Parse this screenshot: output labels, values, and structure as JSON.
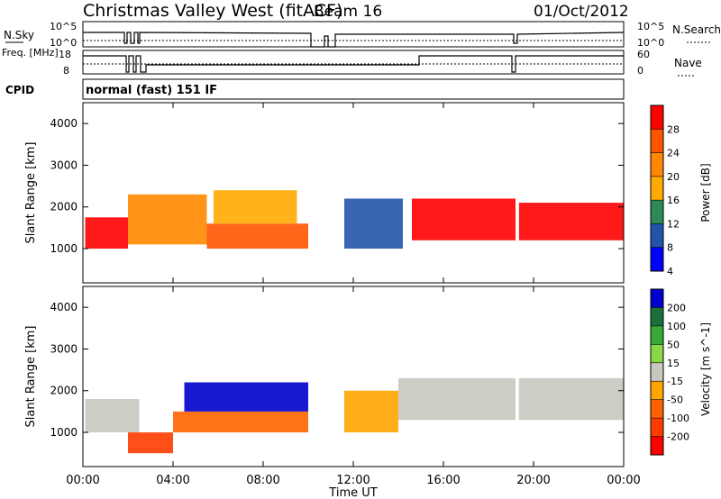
{
  "header": {
    "station": "Christmas Valley West (fitACF)",
    "beam": "Beam 16",
    "date": "01/Oct/2012"
  },
  "nsky_panel": {
    "left_label": "N.Sky",
    "right_label": "N.Search",
    "y_ticks": [
      "10^5",
      "10^0"
    ],
    "right_ticks": [
      "10^5",
      "10^0"
    ]
  },
  "freq_panel": {
    "left_label": "Freq. [MHz]",
    "left_ticks": [
      "18",
      "8"
    ],
    "right_label": "Nave",
    "right_ticks": [
      "60",
      "0"
    ]
  },
  "cpid": {
    "label": "CPID",
    "mode": "normal (fast) 151 IF"
  },
  "power_panel": {
    "ylabel": "Slant Range [km]",
    "y_ticks": [
      "4000",
      "3000",
      "2000",
      "1000"
    ],
    "colorbar_label": "Power [dB]",
    "colorbar_ticks": [
      "28",
      "24",
      "20",
      "16",
      "12",
      "8",
      "4"
    ],
    "colorbar_colors": [
      "#ff0000",
      "#ff5500",
      "#ff8800",
      "#ffaa00",
      "#2e8b57",
      "#2255aa",
      "#0000ff"
    ]
  },
  "velocity_panel": {
    "ylabel": "Slant Range [km]",
    "y_ticks": [
      "4000",
      "3000",
      "2000",
      "1000"
    ],
    "colorbar_label": "Velocity [m s^-1]",
    "colorbar_ticks": [
      "200",
      "100",
      "50",
      "15",
      "-15",
      "-50",
      "-100",
      "-200"
    ],
    "colorbar_colors": [
      "#0000cc",
      "#1c6e3a",
      "#38a838",
      "#88d848",
      "#c8c8c0",
      "#ffa500",
      "#ff6400",
      "#ff3c00",
      "#ff0000"
    ]
  },
  "time_axis": {
    "label": "Time UT",
    "ticks": [
      "00:00",
      "04:00",
      "08:00",
      "12:00",
      "16:00",
      "20:00",
      "00:00"
    ]
  },
  "chart_data": {
    "type": "heatmap",
    "x_range_hours": [
      0,
      24
    ],
    "y_range_km": [
      180,
      4500
    ],
    "data_gaps_hours": [
      [
        10.0,
        10.6
      ],
      [
        11.0,
        11.6
      ],
      [
        19.2,
        19.35
      ]
    ],
    "power_regions": [
      {
        "t0": 0.1,
        "t1": 2.0,
        "r0": 1000,
        "r1": 1750,
        "level": "28"
      },
      {
        "t0": 2.0,
        "t1": 5.5,
        "r0": 1100,
        "r1": 2300,
        "level": "20"
      },
      {
        "t0": 5.5,
        "t1": 10.0,
        "r0": 1000,
        "r1": 1600,
        "level": "24"
      },
      {
        "t0": 5.8,
        "t1": 9.5,
        "r0": 1600,
        "r1": 2400,
        "level": "16"
      },
      {
        "t0": 11.6,
        "t1": 14.2,
        "r0": 1000,
        "r1": 2200,
        "level": "8"
      },
      {
        "t0": 14.6,
        "t1": 19.2,
        "r0": 1200,
        "r1": 2200,
        "level": "28"
      },
      {
        "t0": 19.35,
        "t1": 24.0,
        "r0": 1200,
        "r1": 2100,
        "level": "28"
      }
    ],
    "velocity_regions": [
      {
        "t0": 0.1,
        "t1": 2.5,
        "r0": 1000,
        "r1": 1800,
        "level": "-15"
      },
      {
        "t0": 2.0,
        "t1": 4.0,
        "r0": 500,
        "r1": 1000,
        "level": "-200"
      },
      {
        "t0": 4.0,
        "t1": 10.0,
        "r0": 1000,
        "r1": 1500,
        "level": "-100"
      },
      {
        "t0": 4.5,
        "t1": 10.0,
        "r0": 1500,
        "r1": 2200,
        "level": "200"
      },
      {
        "t0": 11.6,
        "t1": 14.0,
        "r0": 1000,
        "r1": 2000,
        "level": "-50"
      },
      {
        "t0": 14.0,
        "t1": 24.0,
        "r0": 1300,
        "r1": 2300,
        "level": "-15"
      }
    ]
  }
}
